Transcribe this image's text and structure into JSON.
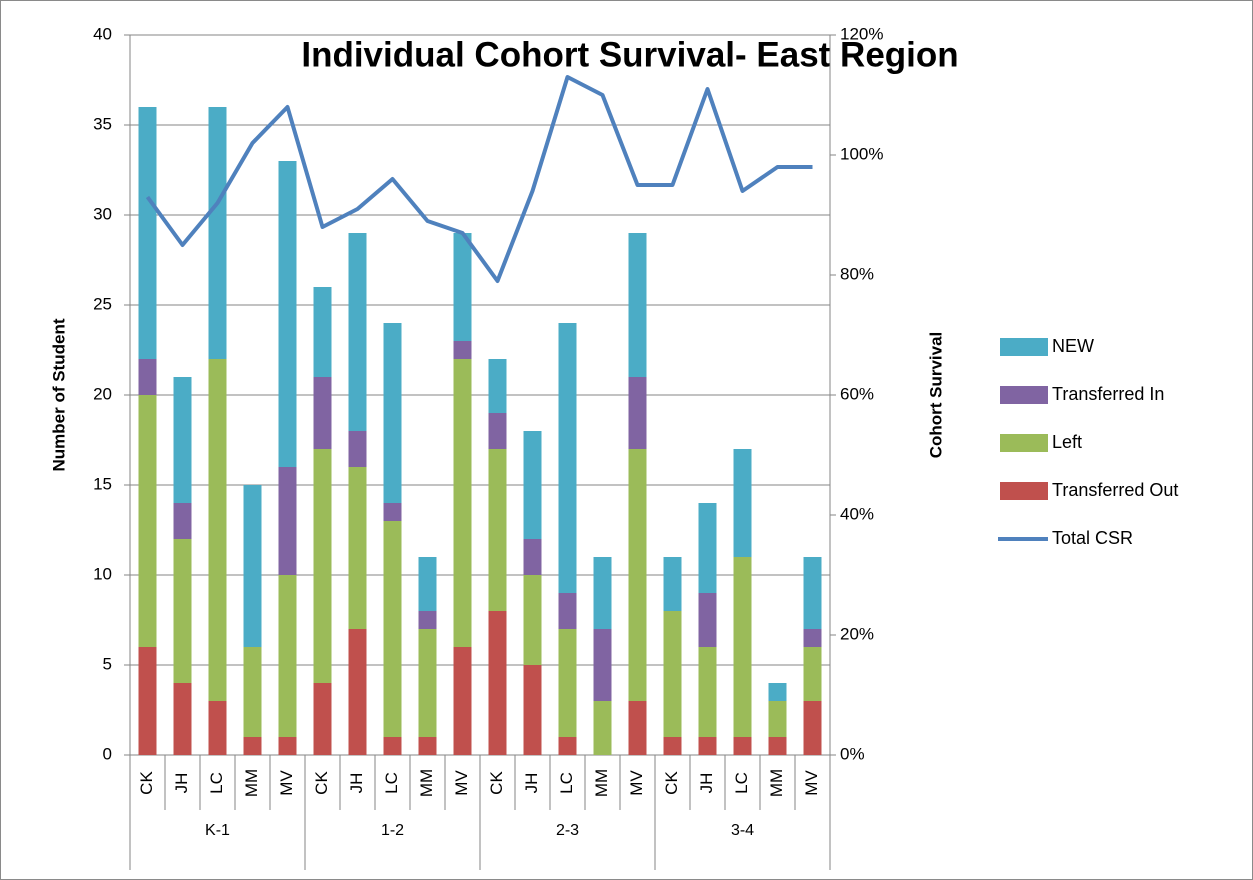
{
  "chart_data": {
    "type": "bar",
    "stacked": true,
    "title": "Individual Cohort Survival- East Region",
    "y_label": "Number of Student",
    "y2_label": "Cohort Survival",
    "groups": [
      "K-1",
      "1-2",
      "2-3",
      "3-4"
    ],
    "categories": [
      "CK",
      "JH",
      "LC",
      "MM",
      "MV",
      "CK",
      "JH",
      "LC",
      "MM",
      "MV",
      "CK",
      "JH",
      "LC",
      "MM",
      "MV",
      "CK",
      "JH",
      "LC",
      "MM",
      "MV"
    ],
    "series": [
      {
        "name": "Transferred Out",
        "color": "#c0504d",
        "values": [
          6,
          4,
          3,
          1,
          1,
          4,
          7,
          1,
          1,
          6,
          8,
          5,
          1,
          0,
          3,
          1,
          1,
          1,
          1,
          3
        ]
      },
      {
        "name": "Left",
        "color": "#9bbb59",
        "values": [
          14,
          8,
          19,
          5,
          9,
          13,
          9,
          12,
          6,
          16,
          9,
          5,
          6,
          3,
          14,
          7,
          5,
          10,
          2,
          3
        ]
      },
      {
        "name": "Transferred In",
        "color": "#8064a2",
        "values": [
          2,
          2,
          0,
          0,
          6,
          4,
          2,
          1,
          1,
          1,
          2,
          2,
          2,
          4,
          4,
          0,
          3,
          0,
          0,
          1
        ]
      },
      {
        "name": "NEW",
        "color": "#4bacc6",
        "values": [
          14,
          7,
          14,
          9,
          17,
          5,
          11,
          10,
          3,
          6,
          3,
          6,
          15,
          4,
          8,
          3,
          5,
          6,
          1,
          4
        ]
      },
      {
        "name": "Total CSR",
        "color": "#4f81bd",
        "axis": "y2",
        "values": [
          93,
          85,
          92,
          102,
          108,
          88,
          91,
          96,
          89,
          87,
          79,
          94,
          113,
          110,
          95,
          95,
          111,
          94,
          98,
          98
        ]
      }
    ],
    "ylim": [
      0,
      40
    ],
    "yticks": [
      0,
      5,
      10,
      15,
      20,
      25,
      30,
      35,
      40
    ],
    "y2lim": [
      0,
      120
    ],
    "y2ticks": [
      {
        "value": 0,
        "label": "0%"
      },
      {
        "value": 20,
        "label": "20%"
      },
      {
        "value": 40,
        "label": "40%"
      },
      {
        "value": 60,
        "label": "60%"
      },
      {
        "value": 80,
        "label": "80%"
      },
      {
        "value": 100,
        "label": "100%"
      },
      {
        "value": 120,
        "label": "120%"
      }
    ],
    "grid": true,
    "legend": "right"
  }
}
